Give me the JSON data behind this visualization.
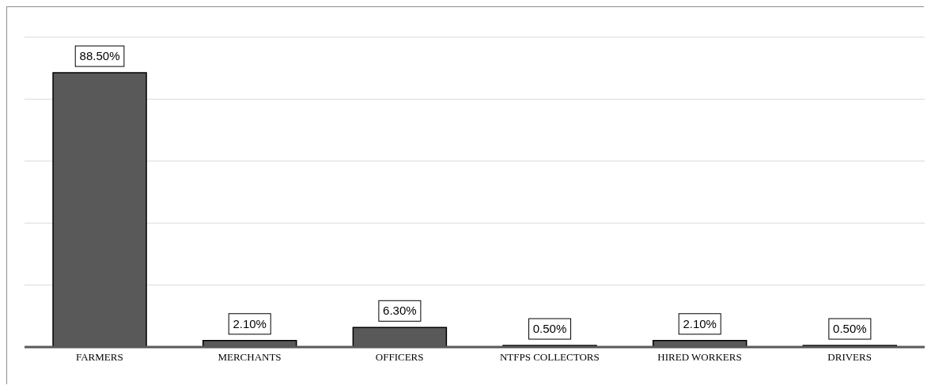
{
  "chart_data": {
    "type": "bar",
    "categories": [
      "FARMERS",
      "MERCHANTS",
      "OFFICERS",
      "NTFPS COLLECTORS",
      "HIRED WORKERS",
      "DRIVERS"
    ],
    "values": [
      88.5,
      2.1,
      6.3,
      0.5,
      2.1,
      0.5
    ],
    "color": "#595959",
    "value_labels": [
      "88.50%",
      "2.10%",
      "6.30%",
      "0.50%",
      "2.10%",
      "0.50%"
    ],
    "ylim": [
      0,
      100
    ],
    "tick_labels": "x",
    "grid": "y"
  }
}
